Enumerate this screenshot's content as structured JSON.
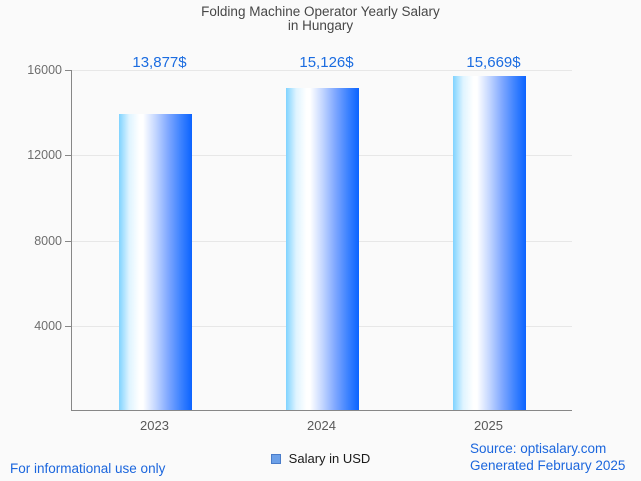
{
  "page": {
    "background": "#fafafa",
    "accent_blue": "#1b66dd"
  },
  "title": {
    "line1": "Folding Machine Operator Yearly Salary",
    "line2": "in Hungary"
  },
  "legend": {
    "label": "Salary in USD",
    "swatch_fill": "#6ca0e8",
    "swatch_border": "#4a7cc9"
  },
  "footer": {
    "disclaimer": "For informational use only",
    "source_line1": "Source: optisalary.com",
    "source_line2": "Generated February 2025"
  },
  "chart_data": {
    "type": "bar",
    "title": "Folding Machine Operator Yearly Salary in Hungary",
    "categories": [
      "2023",
      "2024",
      "2025"
    ],
    "series": [
      {
        "name": "Salary in USD",
        "values": [
          13877,
          15126,
          15669
        ]
      }
    ],
    "value_labels": [
      "13,877$",
      "15,126$",
      "15,669$"
    ],
    "xlabel": "",
    "ylabel": "",
    "ylim": [
      0,
      16000
    ],
    "yticks": [
      4000,
      8000,
      12000,
      16000
    ],
    "grid": true,
    "legend_position": "bottom",
    "value_label_color": "#1b6ce0",
    "bar_gradient": [
      "#7fd3ff",
      "#ffffff",
      "#0b63ff"
    ]
  }
}
